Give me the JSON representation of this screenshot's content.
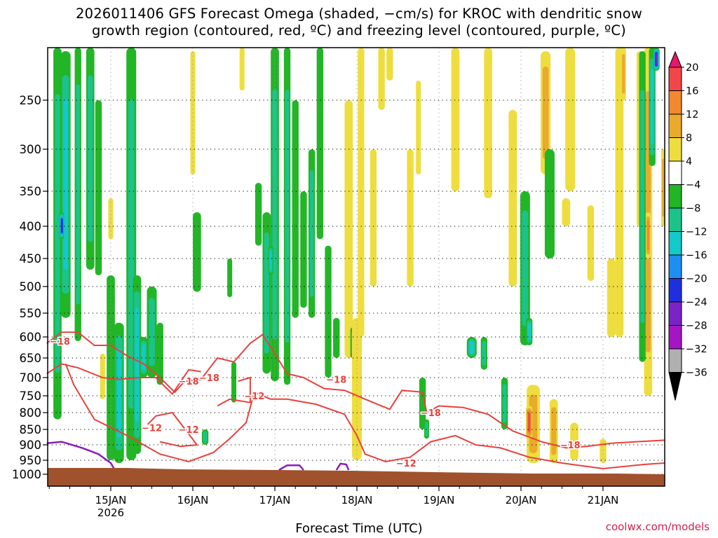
{
  "chart_data": {
    "type": "heatmap",
    "title_lines": [
      "2026011406 GFS Forecast Omega (shaded, −cm/s) for KROC with dendritic snow",
      "growth region (contoured, red, ºC) and freezing level (contoured, purple, ºC)"
    ],
    "xlabel": "Forecast Time (UTC)",
    "x_tick_labels": [
      "15JAN",
      "16JAN",
      "17JAN",
      "18JAN",
      "19JAN",
      "20JAN",
      "21JAN"
    ],
    "x_year_label": "2026",
    "y_tick_labels": [
      "250",
      "300",
      "350",
      "400",
      "450",
      "500",
      "550",
      "600",
      "650",
      "700",
      "750",
      "800",
      "850",
      "900",
      "950",
      "1000"
    ],
    "y_levels_hpa": [
      250,
      300,
      350,
      400,
      450,
      500,
      550,
      600,
      650,
      700,
      750,
      800,
      850,
      900,
      950,
      1000
    ],
    "colorbar": {
      "labels": [
        "20",
        "16",
        "12",
        "8",
        "4",
        "−4",
        "−8",
        "−12",
        "−16",
        "−20",
        "−24",
        "−28",
        "−32",
        "−36"
      ],
      "bins": [
        {
          "color": "#e8176b",
          "from": 20,
          "to": null
        },
        {
          "color": "#f2474a",
          "from": 16,
          "to": 20
        },
        {
          "color": "#f2892e",
          "from": 12,
          "to": 16
        },
        {
          "color": "#eaaa2c",
          "from": 8,
          "to": 12
        },
        {
          "color": "#eedd3e",
          "from": 4,
          "to": 8
        },
        {
          "color": "#ffffff",
          "from": -4,
          "to": 4
        },
        {
          "color": "#22b526",
          "from": -8,
          "to": -4
        },
        {
          "color": "#1bc38b",
          "from": -12,
          "to": -8
        },
        {
          "color": "#14c9c9",
          "from": -16,
          "to": -12
        },
        {
          "color": "#1e8ff0",
          "from": -20,
          "to": -16
        },
        {
          "color": "#1f2fe0",
          "from": -24,
          "to": -20
        },
        {
          "color": "#7a24c8",
          "from": -28,
          "to": -24
        },
        {
          "color": "#a515c4",
          "from": -32,
          "to": -28
        },
        {
          "color": "#b0b0b0",
          "from": -36,
          "to": -32
        },
        {
          "color": "#000000",
          "from": null,
          "to": -36
        }
      ]
    },
    "contour_labels_red": [
      "−18",
      "−18",
      "−18",
      "−18",
      "−18",
      "−18",
      "−12",
      "−12",
      "−12",
      "−12"
    ],
    "colors": {
      "dgz_contour": "#e8413d",
      "freezing_contour": "#8b1ac2",
      "ground": "#a0522d",
      "credit": "#d6204f"
    },
    "grid": true
  },
  "credit": "coolwx.com/models"
}
